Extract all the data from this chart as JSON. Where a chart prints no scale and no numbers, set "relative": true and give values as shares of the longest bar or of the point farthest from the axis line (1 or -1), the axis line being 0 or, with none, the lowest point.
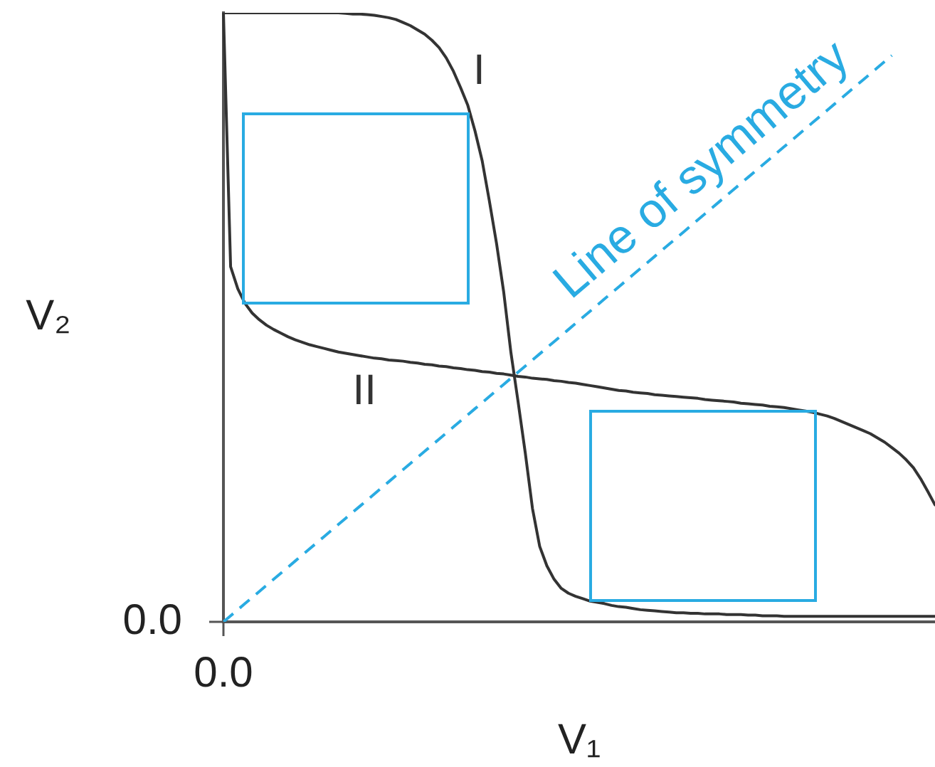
{
  "chart_data": {
    "type": "line",
    "relative": true,
    "xlabel": "V₁",
    "ylabel": "V₂",
    "marker": "none",
    "line_style": "solid",
    "annotations": [
      "0.0",
      "0.0"
    ],
    "categories": [
      null,
      null,
      null,
      null,
      null,
      null,
      null,
      null,
      null,
      null,
      null,
      null,
      null,
      null,
      null,
      null,
      null,
      null,
      null,
      null,
      null,
      null,
      null,
      null,
      null,
      null,
      null,
      null,
      null,
      null,
      null,
      null,
      null,
      null,
      null,
      null,
      null,
      null,
      null,
      null,
      null,
      null,
      null,
      null,
      null,
      null,
      null,
      null,
      null,
      null,
      null,
      null,
      null,
      null,
      null,
      null,
      null,
      null,
      null,
      null,
      null,
      null,
      null,
      null,
      null,
      null,
      null,
      null,
      null,
      null,
      null,
      null,
      null,
      null,
      null,
      null,
      null,
      null,
      null,
      null,
      null,
      null,
      null,
      null,
      null,
      null,
      null,
      null,
      null,
      null,
      null,
      null,
      null,
      null,
      null,
      null,
      null,
      null,
      null,
      null
    ],
    "series": [
      {
        "name": "I",
        "color": "#333333",
        "values": [
          1.0,
          1.0,
          1.0,
          1.0,
          1.0,
          1.0,
          1.0,
          1.0,
          1.0,
          1.0,
          1.0,
          1.0,
          1.0,
          1.0,
          1.0,
          1.0,
          1.0,
          0.999,
          0.998,
          0.998,
          0.997,
          0.996,
          0.994,
          0.992,
          0.989,
          0.984,
          0.979,
          0.972,
          0.965,
          0.955,
          0.943,
          0.926,
          0.904,
          0.877,
          0.848,
          0.806,
          0.757,
          0.691,
          0.621,
          0.541,
          0.442,
          0.361,
          0.277,
          0.186,
          0.124,
          0.092,
          0.07,
          0.055,
          0.047,
          0.042,
          0.038,
          0.034,
          0.032,
          0.03,
          0.027,
          0.025,
          0.024,
          0.022,
          0.02,
          0.019,
          0.018,
          0.017,
          0.016,
          0.015,
          0.015,
          0.014,
          0.014,
          0.013,
          0.013,
          0.013,
          0.012,
          0.012,
          0.012,
          0.011,
          0.011,
          0.01,
          0.01,
          0.01,
          0.009,
          0.009,
          0.009,
          0.009,
          0.009,
          0.009,
          0.009,
          0.009,
          0.009,
          0.009,
          0.009,
          0.009,
          0.009,
          0.009,
          0.009,
          0.009,
          0.009,
          0.009,
          0.009,
          0.009,
          0.009,
          0.009
        ]
      },
      {
        "name": "II",
        "color": "#333333",
        "values": [
          1.0,
          0.583,
          0.547,
          0.523,
          0.507,
          0.496,
          0.487,
          0.48,
          0.474,
          0.468,
          0.463,
          0.459,
          0.455,
          0.452,
          0.449,
          0.446,
          0.443,
          0.441,
          0.439,
          0.437,
          0.435,
          0.433,
          0.432,
          0.43,
          0.429,
          0.428,
          0.426,
          0.425,
          0.423,
          0.422,
          0.42,
          0.419,
          0.417,
          0.416,
          0.414,
          0.413,
          0.411,
          0.41,
          0.408,
          0.407,
          0.405,
          0.403,
          0.402,
          0.4,
          0.399,
          0.398,
          0.396,
          0.395,
          0.393,
          0.392,
          0.39,
          0.388,
          0.386,
          0.384,
          0.382,
          0.38,
          0.379,
          0.377,
          0.376,
          0.375,
          0.373,
          0.372,
          0.371,
          0.37,
          0.369,
          0.368,
          0.367,
          0.365,
          0.364,
          0.363,
          0.362,
          0.361,
          0.359,
          0.358,
          0.357,
          0.356,
          0.354,
          0.353,
          0.352,
          0.35,
          0.348,
          0.346,
          0.344,
          0.341,
          0.338,
          0.334,
          0.329,
          0.324,
          0.319,
          0.314,
          0.309,
          0.302,
          0.295,
          0.286,
          0.277,
          0.266,
          0.253,
          0.235,
          0.214,
          0.192
        ]
      },
      {
        "name": "Line of symmetry",
        "color": "#29abe2",
        "line_style": "dashed",
        "values": [
          0,
          0.01,
          0.02,
          0.03,
          0.04,
          0.05,
          0.06,
          0.07,
          0.08,
          0.09,
          0.1,
          0.11,
          0.12,
          0.13,
          0.14,
          0.15,
          0.16,
          0.17,
          0.18,
          0.19,
          0.2,
          0.21,
          0.22,
          0.23,
          0.24,
          0.25,
          0.26,
          0.27,
          0.28,
          0.29,
          0.3,
          0.31,
          0.32,
          0.33,
          0.34,
          0.35,
          0.36,
          0.37,
          0.38,
          0.39,
          0.4,
          0.41,
          0.42,
          0.43,
          0.44,
          0.45,
          0.46,
          0.47,
          0.48,
          0.49,
          0.5,
          0.51,
          0.52,
          0.53,
          0.54,
          0.55,
          0.56,
          0.57,
          0.58,
          0.59,
          0.6,
          0.61,
          0.62,
          0.63,
          0.64,
          0.65,
          0.66,
          0.67,
          0.68,
          0.69,
          0.7,
          0.71,
          0.72,
          0.73,
          0.74,
          0.75,
          0.76,
          0.77,
          0.78,
          0.79,
          0.8,
          0.81,
          0.82,
          0.83,
          0.84,
          0.85,
          0.86,
          0.87,
          0.88,
          0.89,
          0.9,
          0.91,
          0.92,
          0.93,
          null,
          null,
          null,
          null,
          null,
          null
        ]
      }
    ]
  }
}
